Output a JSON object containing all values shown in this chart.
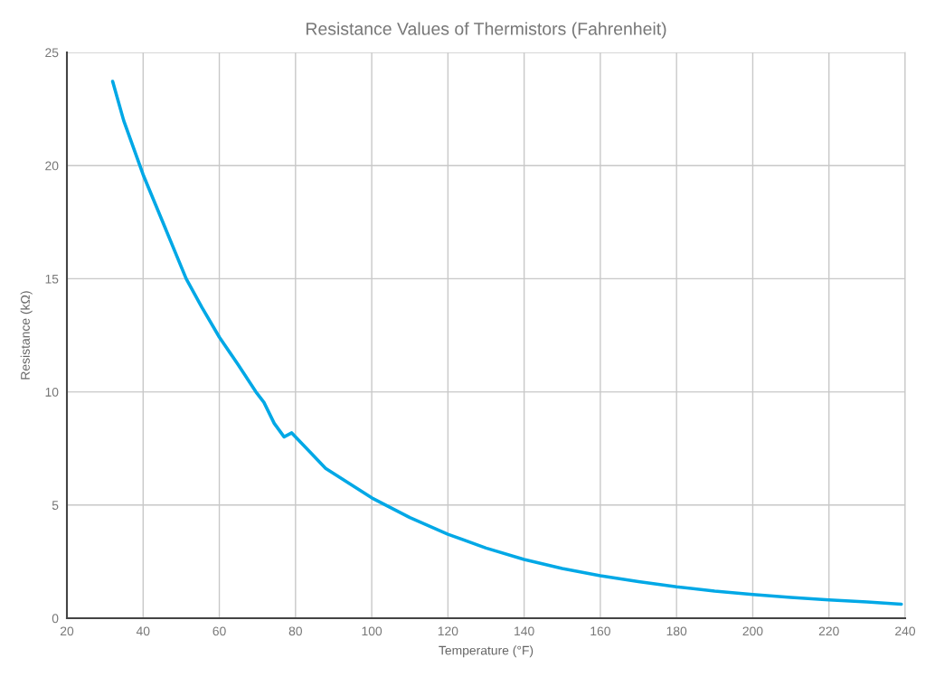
{
  "chart_data": {
    "type": "line",
    "title": "Resistance Values of Thermistors (Fahrenheit)",
    "xlabel": "Temperature (°F)",
    "ylabel": "Resistance (kΩ)",
    "x": [
      32,
      34.9,
      40,
      45.9,
      51.3,
      55.4,
      60,
      64.9,
      69.6,
      71.7,
      74.4,
      77,
      79,
      87.9,
      100,
      110,
      120,
      130,
      140,
      150,
      160,
      170,
      180,
      190,
      200,
      210,
      220,
      230,
      239
    ],
    "series": [
      {
        "color": "#00a8e6",
        "values": [
          23.72,
          21.99,
          19.6,
          17.2,
          15.0,
          13.74,
          12.42,
          11.21,
          10.0,
          9.54,
          8.61,
          8.01,
          8.19,
          6.62,
          5.32,
          4.45,
          3.71,
          3.1,
          2.6,
          2.2,
          1.88,
          1.62,
          1.39,
          1.2,
          1.05,
          0.92,
          0.81,
          0.72,
          0.62
        ]
      }
    ],
    "xlim": [
      20,
      240
    ],
    "xticks": [
      20,
      40,
      60,
      80,
      100,
      120,
      140,
      160,
      180,
      200,
      220,
      240
    ],
    "ylim": [
      0,
      25
    ],
    "yticks": [
      0,
      5,
      10,
      15,
      20,
      25
    ],
    "grid": true,
    "line_style": "solid",
    "marker": "none"
  }
}
